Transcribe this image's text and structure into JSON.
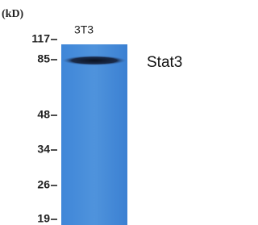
{
  "unit": "(kD)",
  "lane": "3T3",
  "band": "Stat3",
  "markers": [
    "117",
    "85",
    "48",
    "34",
    "26",
    "19"
  ]
}
